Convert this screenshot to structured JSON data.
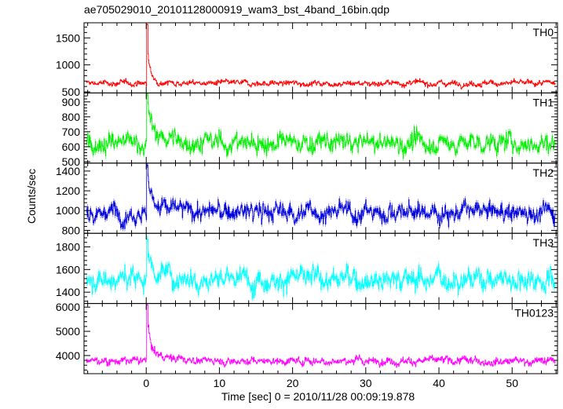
{
  "chart_data": {
    "type": "line",
    "title": "ae705029010_20101128000919_wam3_bst_4band_16bin.qdp",
    "xlabel": "Time [sec] 0 = 2010/11/28 00:09:19.878",
    "ylabel": "Counts/sec",
    "xlim": [
      -8.5,
      56.2
    ],
    "x_ticks": [
      0,
      10,
      20,
      30,
      40,
      50
    ],
    "x_tick_labels": [
      "0",
      "10",
      "20",
      "30",
      "40",
      "50"
    ],
    "time_step": 0.0625,
    "panels": [
      {
        "name": "TH0",
        "color": "#ff0000",
        "ylim": [
          480,
          1780
        ],
        "y_ticks": [
          500,
          1000,
          1500
        ],
        "y_tick_labels": [
          "500",
          "1000",
          "1500"
        ],
        "baseline": 660,
        "noise": 40,
        "peak": 1750,
        "decay": 55
      },
      {
        "name": "TH1",
        "color": "#00ee00",
        "ylim": [
          490,
          960
        ],
        "y_ticks": [
          500,
          600,
          700,
          800,
          900
        ],
        "y_tick_labels": [
          "500",
          "600",
          "700",
          "800",
          "900"
        ],
        "baseline": 625,
        "noise": 50,
        "peak": 955,
        "decay": 90
      },
      {
        "name": "TH2",
        "color": "#0000dd",
        "ylim": [
          770,
          1480
        ],
        "y_ticks": [
          800,
          1000,
          1200,
          1400
        ],
        "y_tick_labels": [
          "800",
          "1000",
          "1200",
          "1400"
        ],
        "baseline": 985,
        "noise": 75,
        "peak": 1460,
        "decay": 140
      },
      {
        "name": "TH3",
        "color": "#00ffff",
        "ylim": [
          1300,
          1920
        ],
        "y_ticks": [
          1400,
          1600,
          1800
        ],
        "y_tick_labels": [
          "1400",
          "1600",
          "1800"
        ],
        "baseline": 1520,
        "noise": 75,
        "peak": 1870,
        "decay": 110
      },
      {
        "name": "TH0123",
        "color": "#ff00ff",
        "ylim": [
          3250,
          6150
        ],
        "y_ticks": [
          4000,
          5000,
          6000
        ],
        "y_tick_labels": [
          "4000",
          "5000",
          "6000"
        ],
        "baseline": 3780,
        "noise": 120,
        "peak": 6100,
        "decay": 500
      }
    ]
  }
}
